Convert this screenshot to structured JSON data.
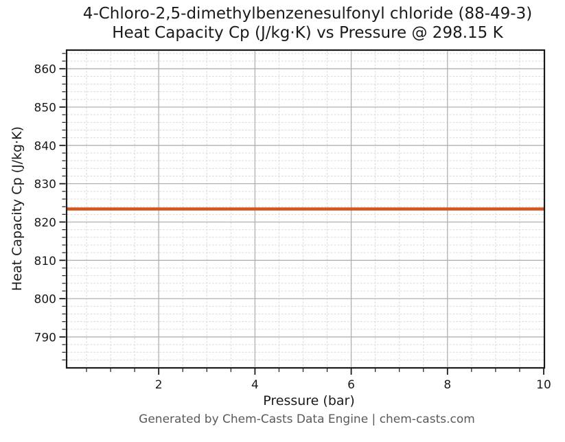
{
  "chart_data": {
    "type": "line",
    "title_line1": "4-Chloro-2,5-dimethylbenzenesulfonyl chloride (88-49-3)",
    "title_line2": "Heat Capacity Cp (J/kg·K) vs Pressure @ 298.15 K",
    "xlabel": "Pressure (bar)",
    "ylabel": "Heat Capacity Cp (J/kg·K)",
    "x": [
      0.1,
      0.5,
      1,
      1.5,
      2,
      2.5,
      3,
      3.5,
      4,
      4.5,
      5,
      5.5,
      6,
      6.5,
      7,
      7.5,
      8,
      8.5,
      9,
      9.5,
      10
    ],
    "series": [
      {
        "name": "Heat Capacity Cp",
        "values": [
          823.4,
          823.4,
          823.4,
          823.4,
          823.4,
          823.4,
          823.4,
          823.4,
          823.4,
          823.4,
          823.4,
          823.4,
          823.4,
          823.4,
          823.4,
          823.4,
          823.4,
          823.4,
          823.4,
          823.4,
          823.4
        ]
      }
    ],
    "constant_value": 823.4,
    "xlim": [
      0.1,
      10
    ],
    "ylim": [
      782.2,
      864.6
    ],
    "xticks": [
      2,
      4,
      6,
      8,
      10
    ],
    "yticks": [
      790,
      800,
      810,
      820,
      830,
      840,
      850,
      860
    ],
    "x_minor_step": 0.5,
    "y_minor_step": 2,
    "grid": "on",
    "legend_position": "none",
    "line_color": "#d4541e",
    "line_width": 4.5,
    "major_grid_color": "#b0b0b0",
    "minor_grid_color": "#d9d9d9",
    "spine_color": "#1a1a1a",
    "tick_color": "#1a1a1a"
  },
  "footer": {
    "text": "Generated by Chem-Casts Data Engine | chem-casts.com"
  }
}
